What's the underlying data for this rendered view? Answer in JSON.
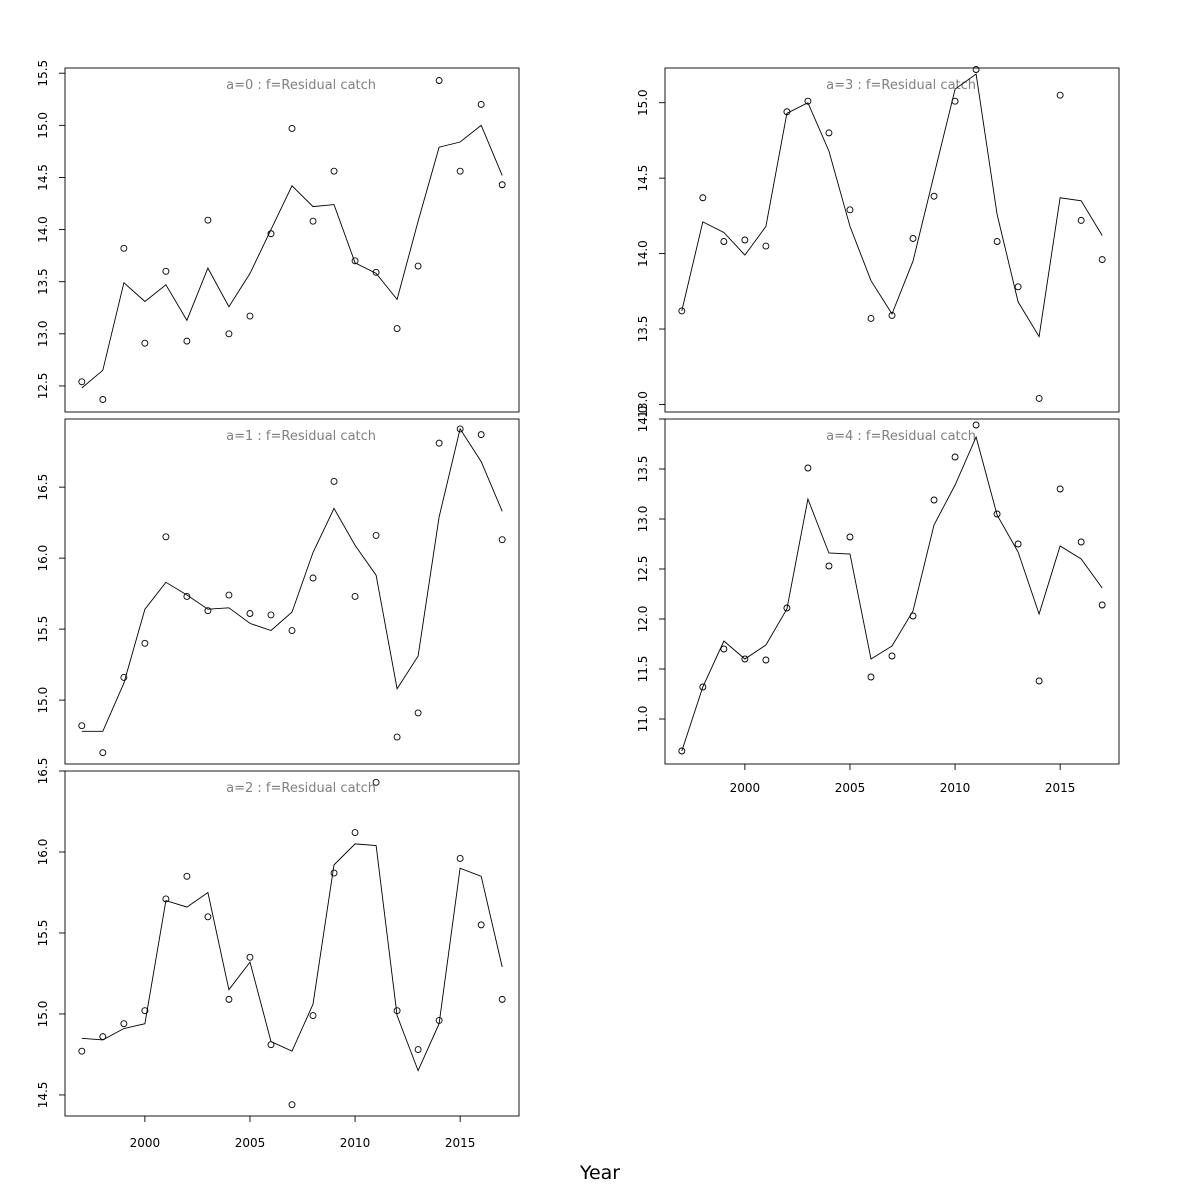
{
  "figure": {
    "xlabel": "Year"
  },
  "chart_data": [
    {
      "type": "line",
      "panel": "a=0",
      "title": "a=0  :  f=Residual catch",
      "x": [
        1997,
        1998,
        1999,
        2000,
        2001,
        2002,
        2003,
        2004,
        2005,
        2006,
        2007,
        2008,
        2009,
        2010,
        2011,
        2012,
        2013,
        2014,
        2015,
        2016,
        2017
      ],
      "series": [
        {
          "kind": "points",
          "values": [
            12.54,
            12.37,
            13.82,
            12.91,
            13.6,
            12.93,
            14.09,
            13.0,
            13.17,
            13.96,
            14.97,
            14.08,
            14.56,
            13.7,
            13.59,
            13.05,
            13.65,
            15.43,
            14.56,
            15.2,
            14.43
          ]
        },
        {
          "kind": "line",
          "values": [
            12.48,
            12.65,
            13.49,
            13.31,
            13.47,
            13.13,
            13.63,
            13.26,
            13.58,
            14.0,
            14.42,
            14.22,
            14.24,
            13.68,
            13.58,
            13.33,
            14.08,
            14.79,
            14.84,
            15.0,
            14.52
          ]
        }
      ],
      "yticks": [
        "12.5",
        "13.0",
        "13.5",
        "14.0",
        "14.5",
        "15.0",
        "15.5"
      ],
      "ylim": [
        12.25,
        15.55
      ],
      "xlim": [
        1996.2,
        2017.8
      ]
    },
    {
      "type": "line",
      "panel": "a=1",
      "title": "a=1  :  f=Residual catch",
      "x": [
        1997,
        1998,
        1999,
        2000,
        2001,
        2002,
        2003,
        2004,
        2005,
        2006,
        2007,
        2008,
        2009,
        2010,
        2011,
        2012,
        2013,
        2014,
        2015,
        2016,
        2017
      ],
      "series": [
        {
          "kind": "points",
          "values": [
            14.82,
            14.63,
            15.16,
            15.4,
            16.15,
            15.73,
            15.63,
            15.74,
            15.61,
            15.6,
            15.49,
            15.86,
            16.54,
            15.73,
            16.16,
            14.74,
            14.91,
            16.81,
            16.91,
            16.87,
            16.13
          ]
        },
        {
          "kind": "line",
          "values": [
            14.78,
            14.78,
            15.12,
            15.64,
            15.83,
            15.74,
            15.64,
            15.65,
            15.54,
            15.49,
            15.62,
            16.04,
            16.35,
            16.09,
            15.88,
            15.08,
            15.31,
            16.29,
            16.91,
            16.68,
            16.33
          ]
        }
      ],
      "yticks": [
        "15.0",
        "15.5",
        "16.0",
        "16.5"
      ],
      "ylim": [
        14.55,
        16.98
      ],
      "xlim": [
        1996.2,
        2017.8
      ]
    },
    {
      "type": "line",
      "panel": "a=2",
      "title": "a=2  :  f=Residual catch",
      "x": [
        1997,
        1998,
        1999,
        2000,
        2001,
        2002,
        2003,
        2004,
        2005,
        2006,
        2007,
        2008,
        2009,
        2010,
        2011,
        2012,
        2013,
        2014,
        2015,
        2016,
        2017
      ],
      "series": [
        {
          "kind": "points",
          "values": [
            14.77,
            14.86,
            14.94,
            15.02,
            15.71,
            15.85,
            15.6,
            15.09,
            15.35,
            14.81,
            14.44,
            14.99,
            15.87,
            16.12,
            16.43,
            15.02,
            14.78,
            14.96,
            15.96,
            15.55,
            15.09
          ]
        },
        {
          "kind": "line",
          "values": [
            14.85,
            14.84,
            14.91,
            14.94,
            15.7,
            15.66,
            15.75,
            15.15,
            15.32,
            14.83,
            14.77,
            15.06,
            15.92,
            16.05,
            16.04,
            14.99,
            14.65,
            14.94,
            15.9,
            15.85,
            15.29
          ]
        }
      ],
      "yticks": [
        "14.5",
        "15.0",
        "15.5",
        "16.0",
        "16.5"
      ],
      "ylim": [
        14.37,
        16.5
      ],
      "xlim": [
        1996.2,
        2017.8
      ]
    },
    {
      "type": "line",
      "panel": "a=3",
      "title": "a=3  :  f=Residual catch",
      "x": [
        1997,
        1998,
        1999,
        2000,
        2001,
        2002,
        2003,
        2004,
        2005,
        2006,
        2007,
        2008,
        2009,
        2010,
        2011,
        2012,
        2013,
        2014,
        2015,
        2016,
        2017
      ],
      "series": [
        {
          "kind": "points",
          "values": [
            13.62,
            14.37,
            14.08,
            14.09,
            14.05,
            14.94,
            15.01,
            14.8,
            14.29,
            13.57,
            13.59,
            14.1,
            14.38,
            15.01,
            15.22,
            14.08,
            13.78,
            13.04,
            15.05,
            14.22,
            13.96
          ]
        },
        {
          "kind": "line",
          "values": [
            13.62,
            14.21,
            14.14,
            13.99,
            14.18,
            14.93,
            15.0,
            14.68,
            14.18,
            13.82,
            13.6,
            13.95,
            14.52,
            15.09,
            15.19,
            14.26,
            13.68,
            13.45,
            14.37,
            14.35,
            14.12
          ]
        }
      ],
      "yticks": [
        "13.0",
        "13.5",
        "14.0",
        "14.5",
        "15.0"
      ],
      "ylim": [
        12.95,
        15.23
      ],
      "xlim": [
        1996.2,
        2017.8
      ]
    },
    {
      "type": "line",
      "panel": "a=4",
      "title": "a=4  :  f=Residual catch",
      "x": [
        1997,
        1998,
        1999,
        2000,
        2001,
        2002,
        2003,
        2004,
        2005,
        2006,
        2007,
        2008,
        2009,
        2010,
        2011,
        2012,
        2013,
        2014,
        2015,
        2016,
        2017
      ],
      "series": [
        {
          "kind": "points",
          "values": [
            10.68,
            11.32,
            11.7,
            11.6,
            11.59,
            12.11,
            13.51,
            12.53,
            12.82,
            11.42,
            11.63,
            12.03,
            13.19,
            13.62,
            13.94,
            13.05,
            12.75,
            11.38,
            13.3,
            12.77,
            12.14
          ]
        },
        {
          "kind": "line",
          "values": [
            10.68,
            11.32,
            11.78,
            11.6,
            11.74,
            12.1,
            13.2,
            12.66,
            12.65,
            11.6,
            11.73,
            12.08,
            12.94,
            13.34,
            13.82,
            13.04,
            12.67,
            12.05,
            12.73,
            12.6,
            12.31
          ]
        }
      ],
      "yticks": [
        "11.0",
        "11.5",
        "12.0",
        "12.5",
        "13.0",
        "13.5",
        "14.0"
      ],
      "ylim": [
        10.55,
        14.0
      ],
      "xlim": [
        1996.2,
        2017.8
      ],
      "xticks": [
        "2000",
        "2005",
        "2010",
        "2015"
      ]
    }
  ]
}
